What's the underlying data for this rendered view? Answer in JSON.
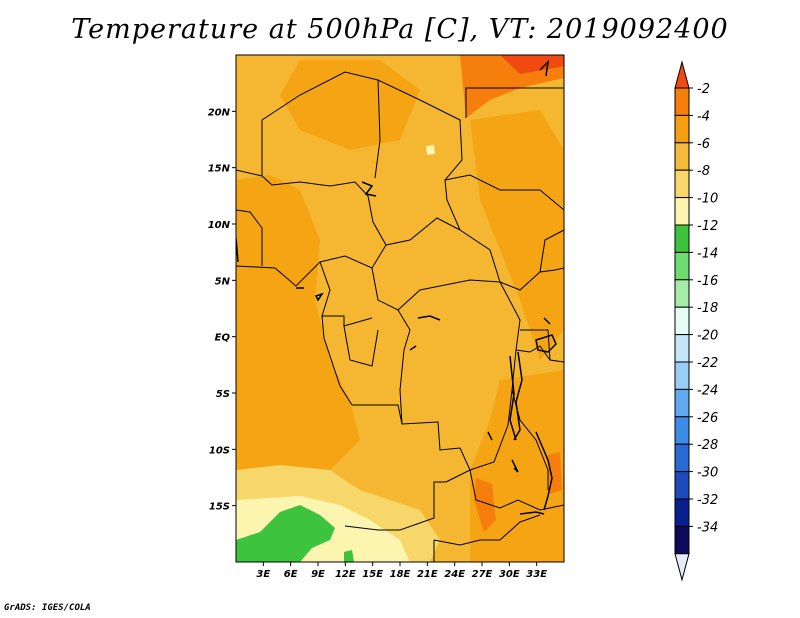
{
  "title": "Temperature at 500hPa [C], VT: 2019092400",
  "credit": "GrADS: IGES/COLA",
  "map": {
    "lon_range": [
      0,
      36
    ],
    "lat_range": [
      -20,
      25
    ],
    "lon_ticks": [
      "3E",
      "6E",
      "9E",
      "12E",
      "15E",
      "18E",
      "21E",
      "24E",
      "27E",
      "30E",
      "33E"
    ],
    "lat_ticks": [
      "20N",
      "15N",
      "10N",
      "5N",
      "EQ",
      "5S",
      "10S",
      "15S"
    ]
  },
  "colorbar": {
    "labels": [
      "-2",
      "-4",
      "-6",
      "-8",
      "-10",
      "-12",
      "-14",
      "-16",
      "-18",
      "-20",
      "-22",
      "-24",
      "-26",
      "-28",
      "-30",
      "-32",
      "-34"
    ],
    "colors": [
      "#f04a10",
      "#f57e0c",
      "#f59e12",
      "#f5ba3c",
      "#f7d769",
      "#fcf5b0",
      "#3ec33e",
      "#6edc6e",
      "#a4ecaa",
      "#e6fcf5",
      "#c4e6fa",
      "#98cdf5",
      "#5fa9ee",
      "#3e8ce6",
      "#2869d4",
      "#1e4aba",
      "#0a1e8c",
      "#0c0a5a",
      "#e6ecfa"
    ]
  },
  "field_colors": {
    "base": "#f5b732",
    "darker": "#f5a414",
    "warm": "#f57e0c",
    "hot": "#f04a10",
    "cool": "#f7d769",
    "cooler": "#fcf5b0",
    "green": "#3ec33e",
    "paleblue": "#e6fcf5"
  }
}
